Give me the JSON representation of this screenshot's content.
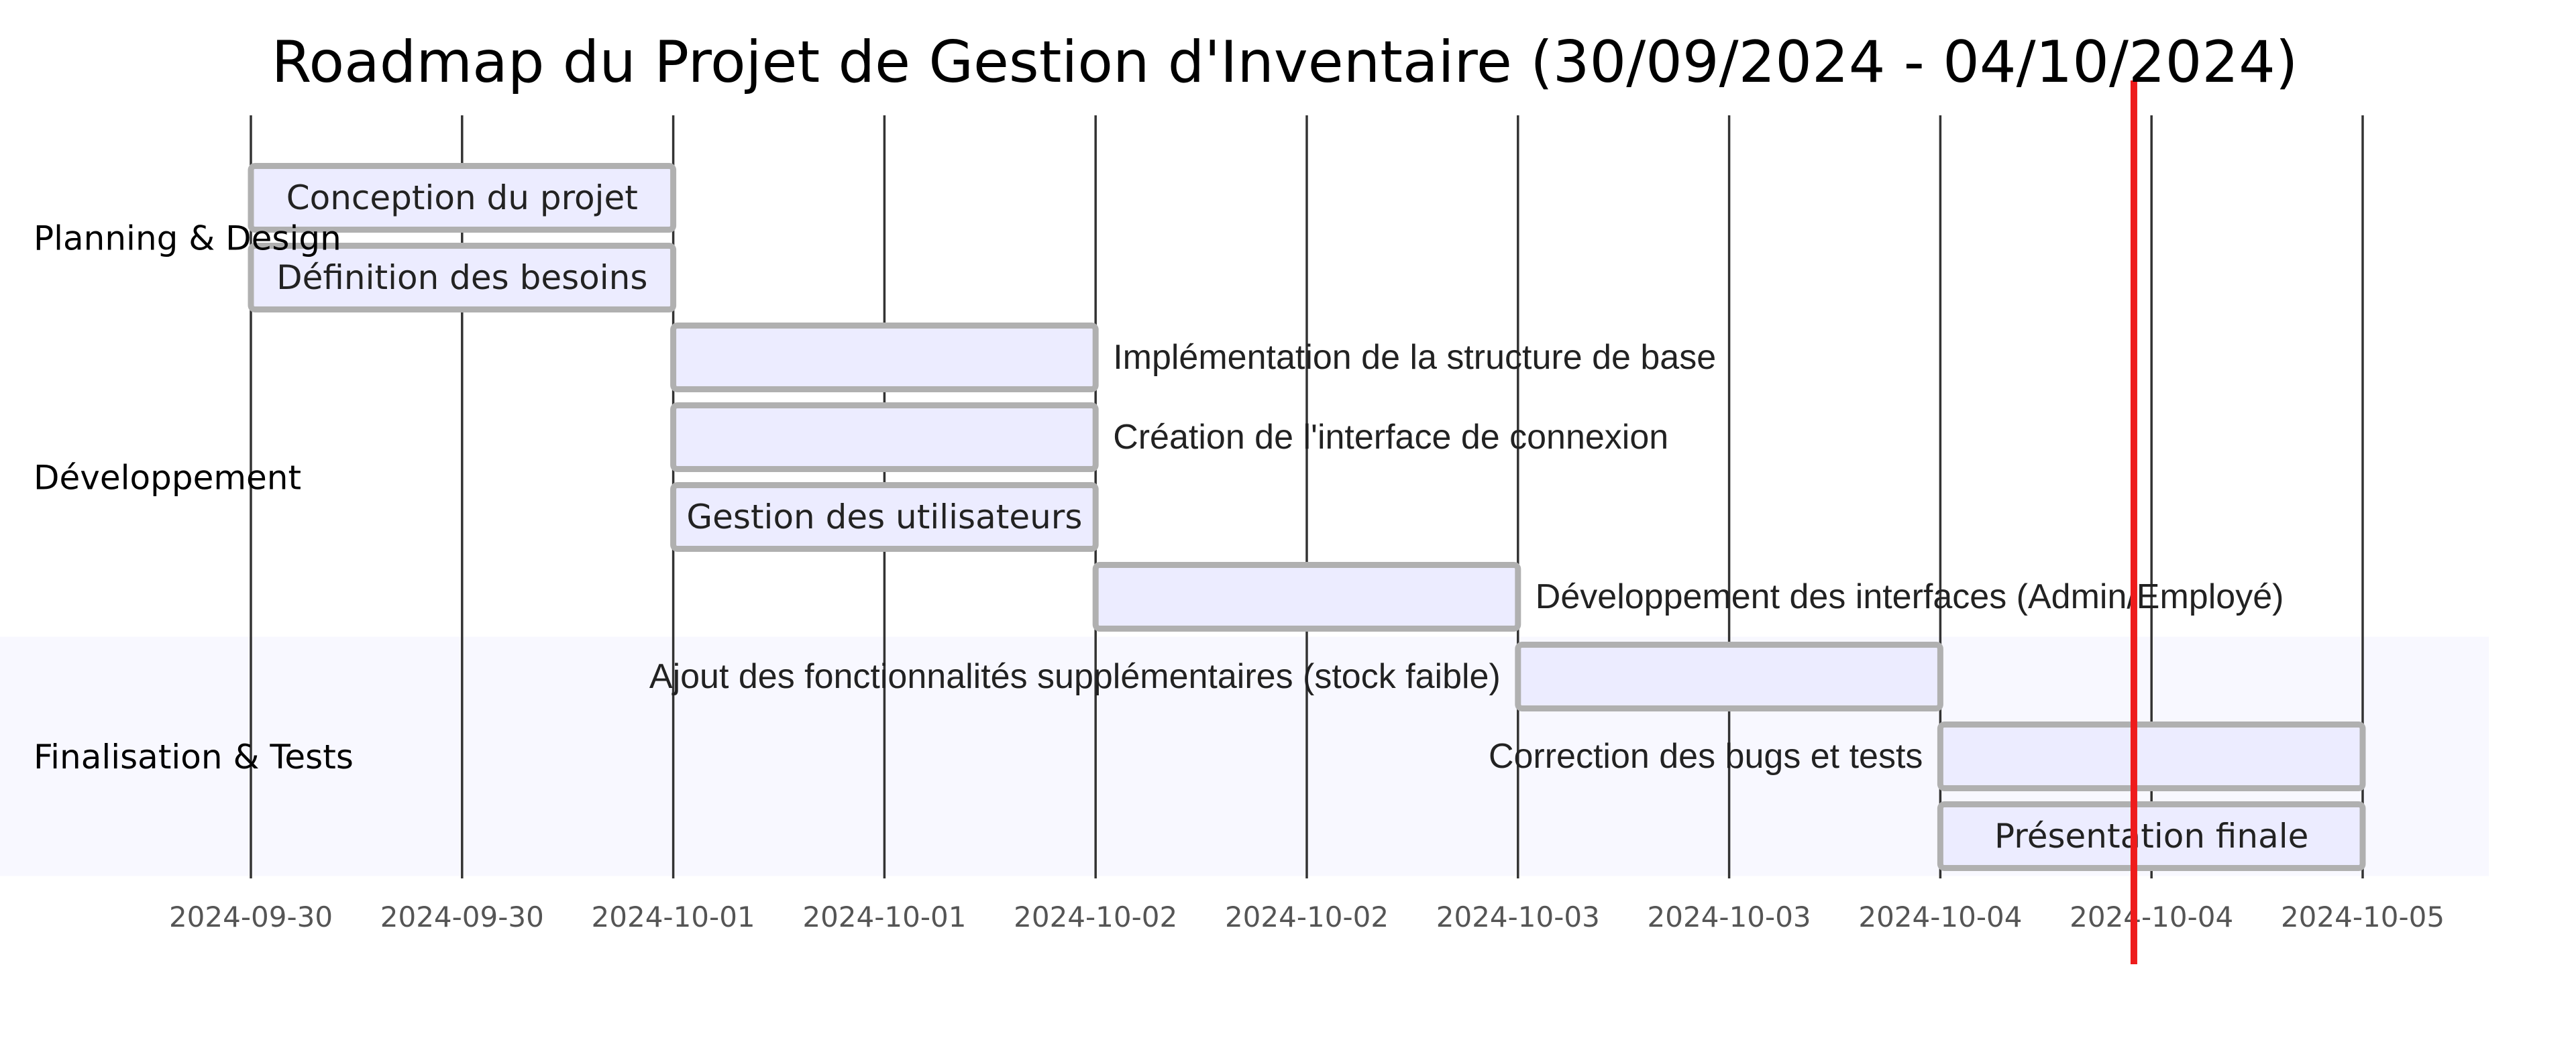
{
  "chart_data": {
    "type": "gantt",
    "title": "Roadmap du Projet de Gestion d'Inventaire (30/09/2024 - 04/10/2024)",
    "x_range": [
      "2024-09-30T00:00",
      "2024-10-05T00:00"
    ],
    "tick_labels": [
      "2024-09-30",
      "2024-09-30",
      "2024-10-01",
      "2024-10-01",
      "2024-10-02",
      "2024-10-02",
      "2024-10-03",
      "2024-10-03",
      "2024-10-04",
      "2024-10-04",
      "2024-10-05"
    ],
    "today_marker": "2024-10-04T11:00",
    "colors": {
      "bar_fill": "#ececff",
      "bar_stroke": "#b0b0b0",
      "today_line": "#ee1c1c",
      "section_band": "#f8f8ff"
    },
    "sections": [
      {
        "name": "Planning & Design",
        "tasks": [
          {
            "name": "Conception du projet",
            "start": "2024-09-30",
            "end": "2024-10-01"
          },
          {
            "name": "Définition des besoins",
            "start": "2024-09-30",
            "end": "2024-10-01"
          }
        ]
      },
      {
        "name": "Développement",
        "tasks": [
          {
            "name": "Implémentation de la structure de base",
            "start": "2024-10-01",
            "end": "2024-10-02"
          },
          {
            "name": "Création de l'interface de connexion",
            "start": "2024-10-01",
            "end": "2024-10-02"
          },
          {
            "name": "Gestion des utilisateurs",
            "start": "2024-10-01",
            "end": "2024-10-02"
          },
          {
            "name": "Développement des interfaces (Admin/Employé)",
            "start": "2024-10-02",
            "end": "2024-10-03"
          }
        ]
      },
      {
        "name": "Finalisation & Tests",
        "tasks": [
          {
            "name": "Ajout des fonctionnalités supplémentaires (stock faible)",
            "start": "2024-10-03",
            "end": "2024-10-04"
          },
          {
            "name": "Correction des bugs et tests",
            "start": "2024-10-04",
            "end": "2024-10-05"
          },
          {
            "name": "Présentation finale",
            "start": "2024-10-04",
            "end": "2024-10-05"
          }
        ]
      }
    ]
  }
}
